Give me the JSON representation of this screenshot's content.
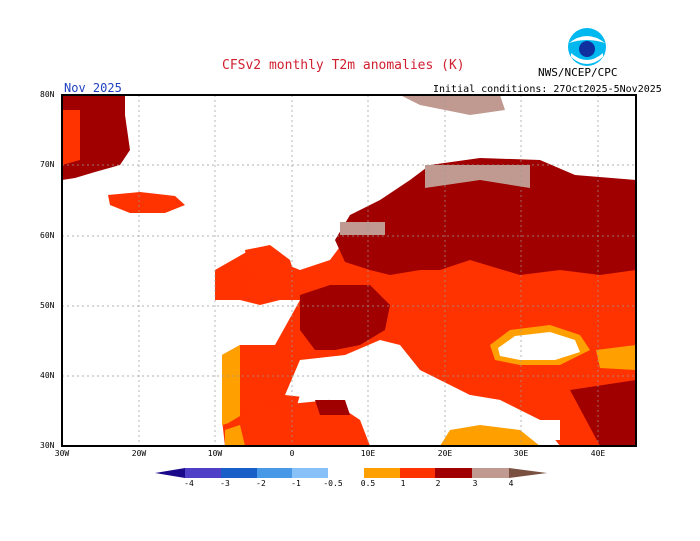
{
  "title": "CFSv2 monthly T2m anomalies (K)",
  "agency": "NWS/NCEP/CPC",
  "logo_text": "NOAA",
  "month": "Nov 2025",
  "initial_conditions": "Initial conditions: 27Oct2025-5Nov2025",
  "lat_labels": [
    "80N",
    "70N",
    "60N",
    "50N",
    "40N",
    "30N"
  ],
  "lon_labels": [
    "30W",
    "20W",
    "10W",
    "0",
    "10E",
    "20E",
    "30E",
    "40E"
  ],
  "colorbar": {
    "labels": [
      "-4",
      "-3",
      "-2",
      "-1",
      "-0.5",
      "0.5",
      "1",
      "2",
      "3",
      "4"
    ],
    "colors": [
      "#1a0a8a",
      "#5040c8",
      "#1860c8",
      "#4898e8",
      "#88c0f8",
      "#ffffff",
      "#ffa000",
      "#ff3300",
      "#a00000",
      "#c09a90",
      "#7a5040"
    ]
  }
}
